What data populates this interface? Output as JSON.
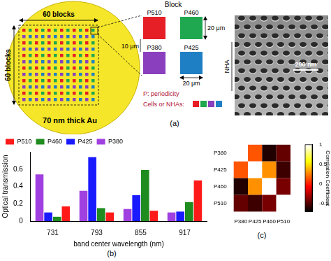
{
  "diagram": {
    "annotation": "(a)",
    "wafer": {
      "blocks_horizontal": "60 blocks",
      "blocks_vertical": "60 blocks",
      "film": "70 nm thick Au"
    },
    "block": {
      "title": "Block",
      "cells": [
        {
          "label": "P510",
          "color": "#e61e25"
        },
        {
          "label": "P460",
          "color": "#1fa84f"
        },
        {
          "label": "P380",
          "color": "#8a3fbf"
        },
        {
          "label": "P425",
          "color": "#1f7fc4"
        }
      ],
      "gap": "10 μm",
      "height": "20 μm",
      "width": "20 μm"
    },
    "key": {
      "periodicity": "P: periodicity",
      "cells": "Cells or NHAs:"
    },
    "sem": {
      "label": "NHA",
      "scale_bar": "200 nm"
    }
  },
  "chart_data": [
    {
      "type": "bar",
      "annotation": "(b)",
      "x_label": "band center wavelength (nm)",
      "y_label": "Optical transmission",
      "categories": [
        "731",
        "793",
        "855",
        "917"
      ],
      "series": [
        {
          "name": "P380",
          "color": "#a040e0",
          "values": [
            0.54,
            0.35,
            0.14,
            0.1
          ]
        },
        {
          "name": "P425",
          "color": "#1a1aff",
          "values": [
            0.1,
            0.74,
            0.3,
            0.11
          ]
        },
        {
          "name": "P460",
          "color": "#1e8c1e",
          "values": [
            0.05,
            0.15,
            0.59,
            0.22
          ]
        },
        {
          "name": "P510",
          "color": "#ff1a1a",
          "values": [
            0.17,
            0.1,
            0.12,
            0.47
          ]
        }
      ],
      "ylim": [
        0,
        0.8
      ],
      "yticks": [
        0,
        0.2,
        0.4,
        0.6
      ],
      "grid": false,
      "legend": "top-left"
    },
    {
      "type": "heatmap",
      "annotation": "(c)",
      "x_categories": [
        "P380",
        "P425",
        "P460",
        "P510"
      ],
      "y_categories": [
        "P380",
        "P425",
        "P460",
        "P510"
      ],
      "cells": [
        [
          1,
          0.15,
          -0.62,
          -0.45
        ],
        [
          0.15,
          1,
          0.3,
          -0.55
        ],
        [
          -0.62,
          0.3,
          1,
          -0.4
        ],
        [
          -0.45,
          -0.55,
          -0.4,
          1
        ]
      ],
      "colorbar": {
        "label": "Correlation Coefficient",
        "range": [
          -0.7,
          1
        ],
        "ticks": [
          -0.5,
          0,
          0.5,
          1
        ]
      }
    }
  ]
}
